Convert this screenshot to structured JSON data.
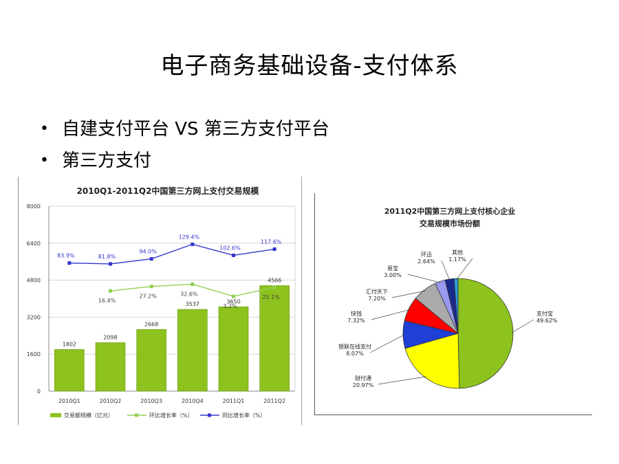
{
  "slide": {
    "title": "电子商务基础设备-支付体系",
    "bullets": [
      {
        "text": "自建支付平台 VS 第三方支付平台"
      },
      {
        "text": "第三方支付"
      }
    ]
  },
  "chart_data": [
    {
      "type": "bar",
      "title": "2010Q1-2011Q2中国第三方网上支付交易规模",
      "categories": [
        "2010Q1",
        "2010Q2",
        "2010Q3",
        "2010Q4",
        "2011Q1",
        "2011Q2"
      ],
      "ylim": [
        0,
        8000
      ],
      "yticks": [
        0,
        1600,
        3200,
        4800,
        6400,
        8000
      ],
      "grid": true,
      "legend_position": "bottom",
      "series": [
        {
          "name": "交易额规模（亿元）",
          "kind": "bar",
          "color": "#8dc21f",
          "values": [
            1802,
            2098,
            2668,
            3537,
            3650,
            4566
          ],
          "labels": [
            "1802",
            "2098",
            "2668",
            "3537",
            "3650",
            "4566"
          ]
        },
        {
          "name": "环比增长率（%）",
          "kind": "line",
          "color": "#92d050",
          "values": [
            null,
            16.4,
            27.2,
            32.6,
            3.2,
            25.1
          ],
          "labels": [
            "",
            "16.4%",
            "27.2%",
            "32.6%",
            "3.2%",
            "25.1%"
          ]
        },
        {
          "name": "同比增长率（%）",
          "kind": "line",
          "color": "#3333cc",
          "values": [
            83.9,
            81.8,
            94.0,
            129.4,
            102.6,
            117.6
          ],
          "labels": [
            "83.9%",
            "81.8%",
            "94.0%",
            "129.4%",
            "102.6%",
            "117.6%"
          ]
        }
      ]
    },
    {
      "type": "pie",
      "title": [
        "2011Q2中国第三方网上支付核心企业",
        "交易规模市场份额"
      ],
      "slices": [
        {
          "name": "支付宝",
          "value": 49.62,
          "label": "49.62%",
          "color": "#8dc21f"
        },
        {
          "name": "财付通",
          "value": 20.97,
          "label": "20.97%",
          "color": "#ffff00"
        },
        {
          "name": "银联在线支付",
          "value": 8.07,
          "label": "8.07%",
          "color": "#1f3fd6"
        },
        {
          "name": "快钱",
          "value": 7.32,
          "label": "7.32%",
          "color": "#ff0000"
        },
        {
          "name": "汇付天下",
          "value": 7.2,
          "label": "7.20%",
          "color": "#aaaaaa"
        },
        {
          "name": "易宝",
          "value": 3.0,
          "label": "3.00%",
          "color": "#9999ee"
        },
        {
          "name": "环迅",
          "value": 2.64,
          "label": "2.64%",
          "color": "#1a2a8a"
        },
        {
          "name": "其他",
          "value": 1.17,
          "label": "1.17%",
          "color": "#2a9ad8"
        }
      ]
    }
  ]
}
